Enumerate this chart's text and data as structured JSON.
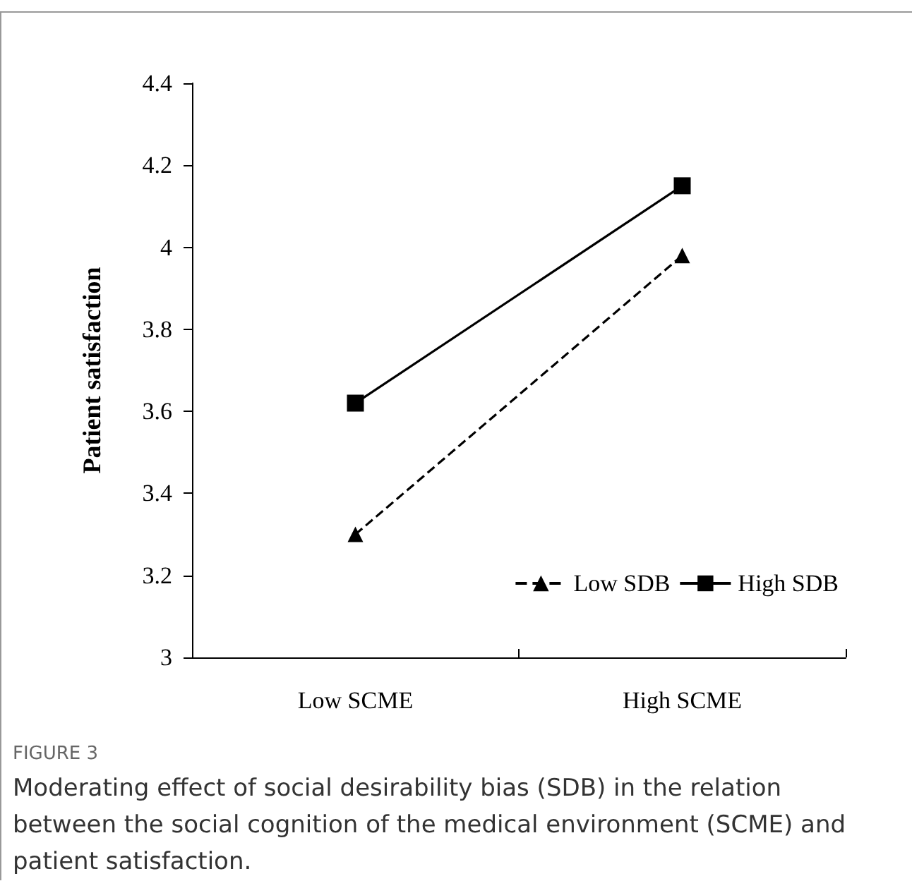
{
  "chart_data": {
    "type": "line",
    "ylabel": "Patient satisfaction",
    "categories": [
      "Low SCME",
      "High SCME"
    ],
    "series": [
      {
        "name": "Low SDB",
        "color": "#000000",
        "values": [
          3.3,
          3.98
        ],
        "marker": "triangle",
        "line_style": "dashed"
      },
      {
        "name": "High SDB",
        "color": "#000000",
        "values": [
          3.62,
          4.15
        ],
        "marker": "square",
        "line_style": "solid"
      }
    ],
    "ylim": [
      3,
      4.4
    ],
    "yticks": [
      3,
      3.2,
      3.4,
      3.6,
      3.8,
      4,
      4.2,
      4.4
    ],
    "grid": false,
    "legend": "bottom right",
    "annotations": [
      "FIGURE 3",
      "Moderating effect of social desirability bias (SDB) in the relation between the social cognition of the medical environment (SCME) and patient satisfaction."
    ]
  }
}
